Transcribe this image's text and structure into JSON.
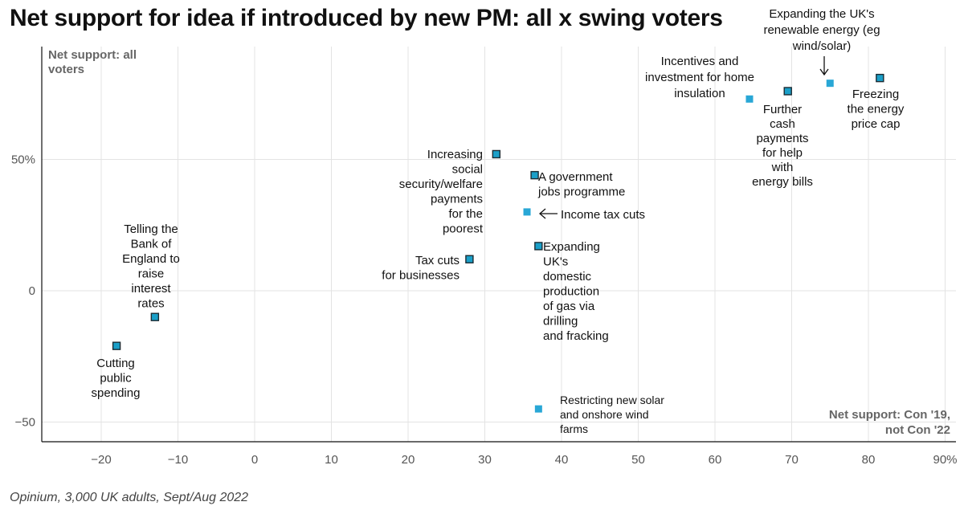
{
  "title": "Net support for idea if introduced by new PM: all x swing voters",
  "source": "Opinium, 3,000 UK adults, Sept/Aug 2022",
  "colors": {
    "point_outlined": "#1a9fc8",
    "point_plain": "#29a7d6",
    "point_stroke": "#1b2b33"
  },
  "chart_data": {
    "type": "scatter",
    "title": "Net support for idea if introduced by new PM: all x swing voters",
    "xlabel": "Net support: Con '19, not Con '22",
    "ylabel": "Net support: all voters",
    "xlim": [
      -28,
      91
    ],
    "ylim": [
      -57,
      92
    ],
    "x_ticks": [
      -20,
      -10,
      0,
      10,
      20,
      30,
      40,
      50,
      60,
      70,
      80,
      90
    ],
    "x_tick_labels": [
      "−20",
      "−10",
      "0",
      "10",
      "20",
      "30",
      "40",
      "50",
      "60",
      "70",
      "80",
      "90%"
    ],
    "y_ticks": [
      -50,
      0,
      50
    ],
    "y_tick_labels": [
      "−50",
      "0",
      "50%"
    ],
    "grid": true,
    "points": [
      {
        "label": "Cutting public spending",
        "x": -18,
        "y": -21,
        "outlined": true
      },
      {
        "label": "Telling the Bank of England to raise interest rates",
        "x": -13,
        "y": -10,
        "outlined": true
      },
      {
        "label": "Tax cuts for businesses",
        "x": 28,
        "y": 12,
        "outlined": true
      },
      {
        "label": "Increasing social security/welfare payments for the poorest",
        "x": 31.5,
        "y": 52,
        "outlined": true
      },
      {
        "label": "Income tax cuts",
        "x": 35.5,
        "y": 30,
        "outlined": false
      },
      {
        "label": "A government jobs programme",
        "x": 36.5,
        "y": 44,
        "outlined": true
      },
      {
        "label": "Expanding UK's domestic production of gas via drilling and fracking",
        "x": 37,
        "y": 17,
        "outlined": true
      },
      {
        "label": "Restricting new solar and onshore wind farms",
        "x": 37,
        "y": -45,
        "outlined": false
      },
      {
        "label": "Incentives and investment for home insulation",
        "x": 64.5,
        "y": 73,
        "outlined": false
      },
      {
        "label": "Further cash payments for help with energy bills",
        "x": 69.5,
        "y": 76,
        "outlined": true
      },
      {
        "label": "Expanding the UK's renewable energy (eg wind/solar)",
        "x": 75,
        "y": 79,
        "outlined": false
      },
      {
        "label": "Freezing the energy price cap",
        "x": 81.5,
        "y": 81,
        "outlined": true
      }
    ],
    "annotations": [
      {
        "lines": [
          "Cutting",
          "public",
          "spending"
        ],
        "point": 0
      },
      {
        "lines": [
          "Telling the",
          "Bank of",
          "England to",
          "raise",
          "interest",
          "rates"
        ],
        "point": 1
      },
      {
        "lines": [
          "Tax cuts",
          "for businesses"
        ],
        "point": 2
      },
      {
        "lines": [
          "Increasing",
          "social",
          "security/welfare",
          "payments",
          "for the",
          "poorest"
        ],
        "point": 3
      },
      {
        "lines": [
          "Income tax cuts"
        ],
        "point": 4
      },
      {
        "lines": [
          "A government",
          "jobs programme"
        ],
        "point": 5
      },
      {
        "lines": [
          "Expanding",
          "UK's",
          "domestic",
          "production",
          "of gas via",
          "drilling",
          "and fracking"
        ],
        "point": 6
      },
      {
        "lines": [
          "Restricting new solar",
          "and onshore wind",
          "farms"
        ],
        "point": 7
      },
      {
        "lines": [
          "Incentives and",
          "investment for home",
          "insulation"
        ],
        "point": 8
      },
      {
        "lines": [
          "Further",
          "cash",
          "payments",
          "for help",
          "with",
          "energy bills"
        ],
        "point": 9
      },
      {
        "lines": [
          "Expanding the UK's",
          "renewable energy (eg",
          "wind/solar)"
        ],
        "point": 10
      },
      {
        "lines": [
          "Freezing",
          "the energy",
          "price cap"
        ],
        "point": 11
      }
    ],
    "y_axis_note": [
      "Net support: all",
      "voters"
    ],
    "x_axis_note": [
      "Net support: Con '19,",
      "not Con '22"
    ]
  }
}
